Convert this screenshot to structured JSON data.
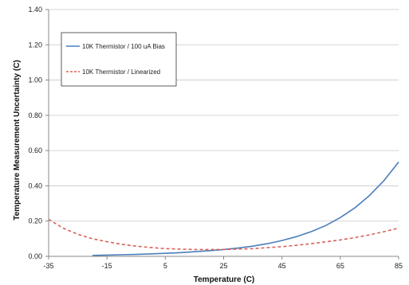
{
  "chart_data": {
    "type": "line",
    "xlabel": "Temperature (C)",
    "ylabel": "Temperature Measurement Uncertainty (C)",
    "xlim": [
      -35,
      85
    ],
    "ylim": [
      0,
      1.4
    ],
    "x_ticks": [
      "-35",
      "-15",
      "5",
      "25",
      "45",
      "65",
      "85"
    ],
    "x_tick_values": [
      -35,
      -15,
      5,
      25,
      45,
      65,
      85
    ],
    "y_ticks": [
      "0.00",
      "0.20",
      "0.40",
      "0.60",
      "0.80",
      "1.00",
      "1.20",
      "1.40"
    ],
    "y_tick_values": [
      0,
      0.2,
      0.4,
      0.6,
      0.8,
      1.0,
      1.2,
      1.4
    ],
    "grid": "horizontal",
    "legend_position": "top-left",
    "series": [
      {
        "name": "10K Thermistor / 100 uA Bias",
        "color": "#4a7ebb",
        "style": "solid",
        "x": [
          -20,
          -15,
          -10,
          -5,
          0,
          5,
          10,
          15,
          20,
          25,
          30,
          35,
          40,
          45,
          50,
          55,
          60,
          65,
          70,
          75,
          80,
          85
        ],
        "y": [
          0.005,
          0.007,
          0.009,
          0.011,
          0.014,
          0.017,
          0.021,
          0.026,
          0.032,
          0.039,
          0.047,
          0.058,
          0.072,
          0.09,
          0.112,
          0.14,
          0.175,
          0.22,
          0.275,
          0.345,
          0.43,
          0.535
        ]
      },
      {
        "name": "10K Thermistor / Linearized",
        "color": "#d9625b",
        "style": "dashed",
        "x": [
          -35,
          -30,
          -25,
          -20,
          -15,
          -10,
          -5,
          0,
          5,
          10,
          15,
          20,
          25,
          30,
          35,
          40,
          45,
          50,
          55,
          60,
          65,
          70,
          75,
          80,
          85
        ],
        "y": [
          0.21,
          0.16,
          0.125,
          0.1,
          0.083,
          0.068,
          0.058,
          0.05,
          0.044,
          0.041,
          0.039,
          0.039,
          0.039,
          0.041,
          0.044,
          0.049,
          0.055,
          0.063,
          0.072,
          0.082,
          0.093,
          0.106,
          0.122,
          0.14,
          0.16
        ]
      }
    ]
  }
}
